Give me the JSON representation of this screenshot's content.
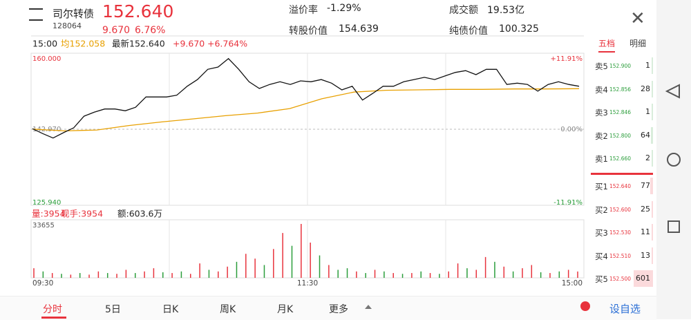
{
  "header": {
    "name": "司尔转债",
    "code": "128064",
    "price": "152.640",
    "change": "9.670",
    "change_pct": "6.76%",
    "stats": [
      {
        "label": "溢价率",
        "value": "-1.29%"
      },
      {
        "label": "成交额",
        "value": "19.53亿"
      },
      {
        "label": "转股价值",
        "value": "154.639"
      },
      {
        "label": "纯债价值",
        "value": "100.325"
      }
    ]
  },
  "info": {
    "time": "15:00",
    "avg": "均152.058",
    "last": "最新152.640",
    "change": "+9.670",
    "change_pct": "+6.764%"
  },
  "intraday": {
    "price_ticks": [
      {
        "value": 160,
        "label": "160.000"
      },
      {
        "value": 142.97,
        "label": "142.970"
      },
      {
        "value": 125.94,
        "label": "125.940"
      }
    ],
    "pct_labels": [
      "+11.91%",
      "0.00%",
      "-11.91%"
    ],
    "price": [
      143.1,
      142.0,
      141.0,
      142.2,
      143.3,
      145.9,
      146.8,
      147.5,
      147.5,
      147.1,
      147.9,
      150.2,
      150.2,
      150.2,
      150.6,
      152.6,
      154.1,
      156.4,
      156.9,
      158.8,
      156.4,
      153.6,
      152.1,
      153.0,
      153.6,
      153.0,
      153.8,
      153.6,
      154.1,
      153.3,
      151.8,
      152.6,
      149.5,
      151.0,
      152.6,
      152.6,
      153.6,
      154.1,
      154.6,
      154.1,
      154.9,
      155.7,
      156.1,
      155.2,
      156.4,
      156.4,
      153.0,
      153.3,
      153.0,
      151.5,
      153.0,
      153.6,
      153.0,
      152.6
    ],
    "avg": [
      143.0,
      142.6,
      142.8,
      143.8,
      144.6,
      145.3,
      146.0,
      146.6,
      147.6,
      149.8,
      151.3,
      151.7,
      151.8,
      151.9,
      151.9,
      152.0,
      152.0,
      152.06
    ],
    "volume_info": [
      "量:3954",
      "现手:3954",
      "额:603.6万"
    ],
    "volume_max": 33655,
    "volume": [
      6000,
      4000,
      3000,
      2500,
      2000,
      3000,
      2000,
      4000,
      3000,
      2500,
      5000,
      3000,
      4000,
      6000,
      3500,
      3000,
      4000,
      2500,
      9000,
      5000,
      4000,
      7000,
      10000,
      15000,
      12000,
      8000,
      18000,
      28000,
      20000,
      33655,
      22000,
      14000,
      8000,
      5000,
      6000,
      4000,
      3000,
      5000,
      4000,
      3000,
      2500,
      3000,
      4000,
      3000,
      2500,
      4000,
      9000,
      6000,
      5000,
      13000,
      10000,
      7000,
      4000,
      6000,
      8000,
      3500,
      3000,
      4000,
      5000,
      3954
    ],
    "volume_up": [
      true,
      false,
      true,
      false,
      true,
      false,
      true,
      true,
      false,
      true,
      true,
      false,
      true,
      true,
      false,
      true,
      false,
      true,
      true,
      false,
      true,
      true,
      false,
      true,
      true,
      false,
      true,
      true,
      false,
      true,
      true,
      false,
      true,
      false,
      false,
      true,
      false,
      true,
      false,
      true,
      false,
      true,
      false,
      true,
      false,
      true,
      true,
      false,
      true,
      true,
      false,
      true,
      false,
      true,
      true,
      false,
      true,
      false,
      true,
      true
    ],
    "times": [
      "09:30",
      "11:30",
      "15:00"
    ]
  },
  "orderbook": {
    "tabs": [
      "五档",
      "明细"
    ],
    "asks": [
      {
        "label": "卖5",
        "price": "152.900",
        "volume": "1"
      },
      {
        "label": "卖4",
        "price": "152.856",
        "volume": "28"
      },
      {
        "label": "卖3",
        "price": "152.846",
        "volume": "1"
      },
      {
        "label": "卖2",
        "price": "152.800",
        "volume": "64"
      },
      {
        "label": "卖1",
        "price": "152.660",
        "volume": "2"
      }
    ],
    "bids": [
      {
        "label": "买1",
        "price": "152.640",
        "volume": "77"
      },
      {
        "label": "买2",
        "price": "152.600",
        "volume": "25"
      },
      {
        "label": "买3",
        "price": "152.530",
        "volume": "11"
      },
      {
        "label": "买4",
        "price": "152.510",
        "volume": "13"
      },
      {
        "label": "买5",
        "price": "152.500",
        "volume": "601"
      }
    ]
  },
  "tabs": [
    "分时",
    "5日",
    "日K",
    "周K",
    "月K",
    "更多"
  ],
  "watch": "设自选"
}
